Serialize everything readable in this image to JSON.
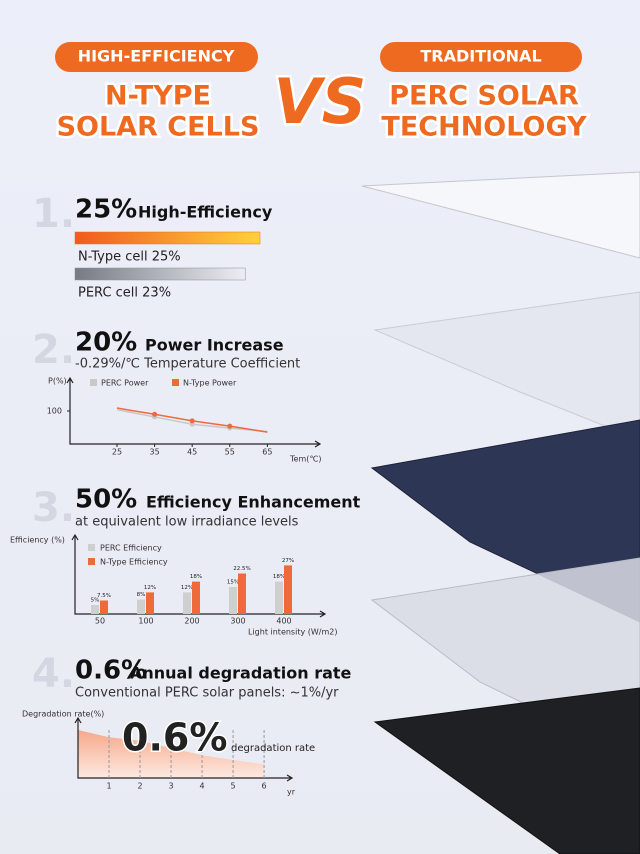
{
  "header": {
    "left_badge": "HIGH-EFFICIENCY",
    "left_title": [
      "N-TYPE",
      "SOLAR CELLS"
    ],
    "vs": "VS",
    "right_badge": "TRADITIONAL",
    "right_title": [
      "PERC SOLAR",
      "TECHNOLOGY"
    ]
  },
  "section1": {
    "number": "1.",
    "headline": "25%",
    "headline_text": "High-Efficiency",
    "bars": [
      {
        "label": "N-Type cell 25%",
        "value": 25,
        "color": "#f26a21"
      },
      {
        "label": "PERC cell 23%",
        "value": 23,
        "color": "#8a8d95"
      }
    ]
  },
  "section2": {
    "number": "2.",
    "headline": "20%",
    "headline_text": "Power Increase",
    "subtitle": "-0.29%/℃ Temperature Coefficient",
    "chart": {
      "type": "line",
      "y_label": "P(%)",
      "x_label": "Tem(℃)",
      "x": [
        25,
        35,
        45,
        55,
        65
      ],
      "xlim": [
        12.5,
        79
      ],
      "xticks": [
        25,
        35,
        45,
        55,
        65
      ],
      "ylim": [
        95,
        105
      ],
      "yticks": [
        100
      ],
      "series": [
        {
          "name": "PERC Power",
          "color": "#c8c8c8",
          "values": [
            100.2,
            99.1,
            98,
            97.4,
            96.9
          ]
        },
        {
          "name": "N-Type Power",
          "color": "#ee6a3a",
          "values": [
            100.45,
            99.5,
            98.5,
            97.7,
            96.8
          ]
        }
      ]
    }
  },
  "section3": {
    "number": "3.",
    "headline": "50%",
    "headline_text": "Efficiency Enhancement",
    "subtitle": "at equivalent low irradiance levels",
    "chart": {
      "type": "bar",
      "y_label": "Efficiency (%)",
      "x_label": "Light intensity (W/m2)",
      "categories": [
        "50",
        "100",
        "200",
        "300",
        "400"
      ],
      "ylim": [
        0,
        30
      ],
      "series": [
        {
          "name": "PERC Efficiency",
          "color": "#cfcfcf",
          "values": [
            5,
            8,
            12,
            15,
            18
          ],
          "value_labels": [
            "5%",
            "8%",
            "12%",
            "15%",
            "18%"
          ]
        },
        {
          "name": "N-Type Efficiency",
          "color": "#ee6a3a",
          "values": [
            7.5,
            12,
            18,
            22.5,
            27
          ],
          "value_labels": [
            "7.5%",
            "12%",
            "18%",
            "22.5%",
            "27%"
          ]
        }
      ]
    }
  },
  "section4": {
    "number": "4.",
    "headline": "0.6%",
    "headline_text": "Annual degradation rate",
    "subtitle": "Conventional PERC solar panels: ~1%/yr",
    "chart": {
      "type": "area",
      "y_label": "Degradation rate(%)",
      "x_label": "yr",
      "highlight": "0.6%",
      "highlight_text": "degradation rate",
      "x": [
        0,
        1,
        2,
        3,
        4,
        5,
        6
      ],
      "xlim": [
        0,
        6.9
      ],
      "xticks": [
        1,
        2,
        3,
        4,
        5,
        6
      ],
      "ylim": [
        0,
        10
      ],
      "color": "#f6b7a0",
      "values": [
        8,
        6.8,
        6.2,
        5,
        3.8,
        3,
        2.3
      ]
    }
  }
}
